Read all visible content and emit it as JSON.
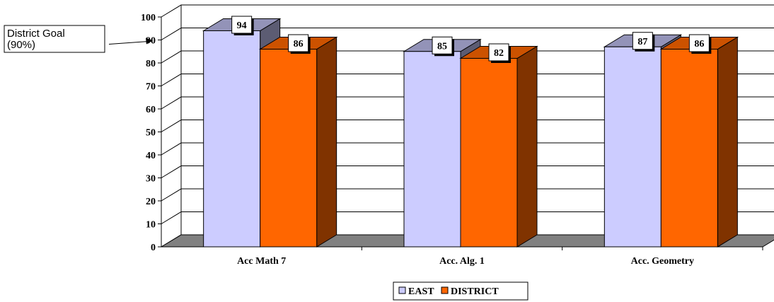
{
  "chart_data": {
    "type": "bar",
    "title": "",
    "xlabel": "",
    "ylabel": "",
    "categories": [
      "Acc Math 7",
      "Acc. Alg. 1",
      "Acc. Geometry"
    ],
    "series": [
      {
        "name": "EAST",
        "values": [
          94,
          85,
          87
        ],
        "color": "#ccccff"
      },
      {
        "name": "DISTRICT",
        "values": [
          86,
          82,
          86
        ],
        "color": "#ff6600"
      }
    ],
    "ylim": [
      0,
      100
    ],
    "yticks": [
      0,
      10,
      20,
      30,
      40,
      50,
      60,
      70,
      80,
      90,
      100
    ],
    "grid": true,
    "legend": "bottom-center",
    "annotation": {
      "line1": "District Goal",
      "line2": "(90%)",
      "target_value": 90
    }
  }
}
